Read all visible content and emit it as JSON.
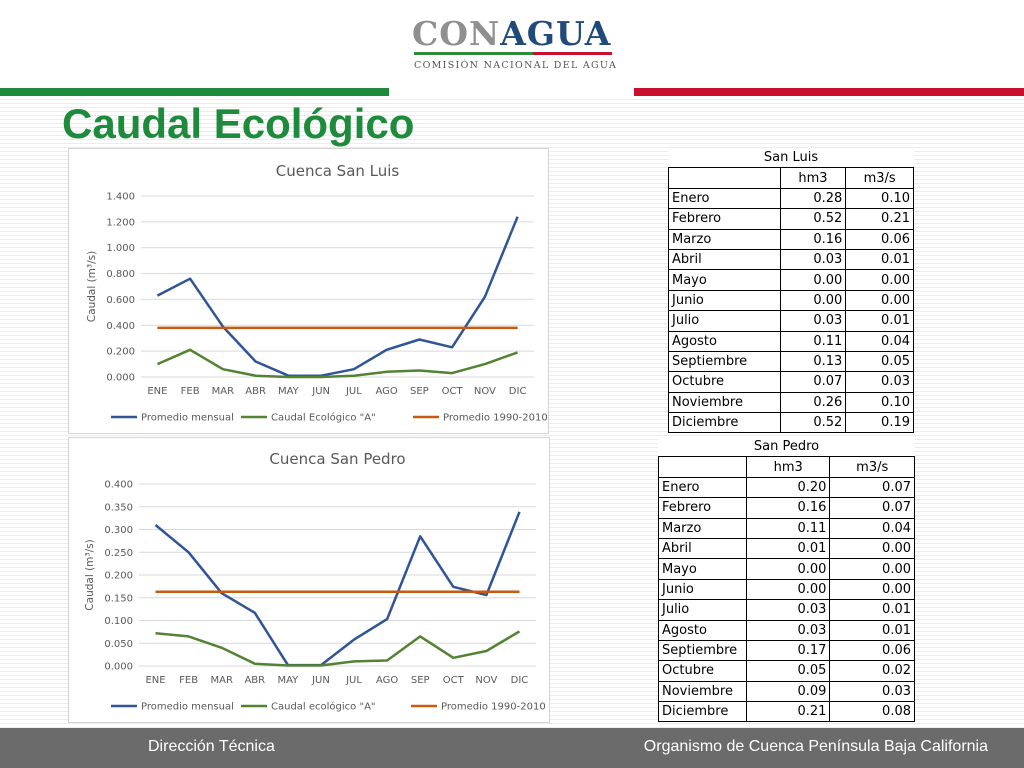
{
  "logo": {
    "text_a": "CON",
    "text_b": "AGUA",
    "subtitle": "COMISIÓN NACIONAL DEL AGUA"
  },
  "title": "Caudal Ecológico",
  "footer": {
    "left": "Dirección  Técnica",
    "right": "Organismo de Cuenca Península Baja California"
  },
  "chart_data": [
    {
      "type": "line",
      "title": "Cuenca San Luis",
      "ylabel": "Caudal (m³/s)",
      "xlabel": "",
      "categories": [
        "ENE",
        "FEB",
        "MAR",
        "ABR",
        "MAY",
        "JUN",
        "JUL",
        "AGO",
        "SEP",
        "OCT",
        "NOV",
        "DIC"
      ],
      "ylim": [
        0,
        1.4
      ],
      "yticks": [
        0,
        0.2,
        0.4,
        0.6,
        0.8,
        1.0,
        1.2,
        1.4
      ],
      "ytick_labels": [
        "0.000",
        "0.200",
        "0.400",
        "0.600",
        "0.800",
        "1.000",
        "1.200",
        "1.400"
      ],
      "grid": true,
      "legend": "bottom",
      "series": [
        {
          "name": "Promedio mensual",
          "color": "#2f5597",
          "values": [
            0.63,
            0.76,
            0.39,
            0.12,
            0.01,
            0.01,
            0.06,
            0.21,
            0.29,
            0.23,
            0.62,
            1.24
          ]
        },
        {
          "name": "Caudal Ecológico \"A\"",
          "color": "#548235",
          "values": [
            0.1,
            0.21,
            0.06,
            0.01,
            0.0,
            0.0,
            0.01,
            0.04,
            0.05,
            0.03,
            0.1,
            0.19
          ]
        },
        {
          "name": "Promedio 1990-2010",
          "color": "#c55a11",
          "values": [
            0.38,
            0.38,
            0.38,
            0.38,
            0.38,
            0.38,
            0.38,
            0.38,
            0.38,
            0.38,
            0.38,
            0.38
          ]
        }
      ]
    },
    {
      "type": "line",
      "title": "Cuenca San Pedro",
      "ylabel": "Caudal (m³/s)",
      "xlabel": "",
      "categories": [
        "ENE",
        "FEB",
        "MAR",
        "ABR",
        "MAY",
        "JUN",
        "JUL",
        "AGO",
        "SEP",
        "OCT",
        "NOV",
        "DIC"
      ],
      "ylim": [
        0,
        0.4
      ],
      "yticks": [
        0,
        0.05,
        0.1,
        0.15,
        0.2,
        0.25,
        0.3,
        0.35,
        0.4
      ],
      "ytick_labels": [
        "0.000",
        "0.050",
        "0.100",
        "0.150",
        "0.200",
        "0.250",
        "0.300",
        "0.350",
        "0.400"
      ],
      "grid": true,
      "legend": "bottom",
      "series": [
        {
          "name": "Promedio mensual",
          "color": "#2f5597",
          "values": [
            0.31,
            0.25,
            0.16,
            0.117,
            0.002,
            0.002,
            0.058,
            0.103,
            0.285,
            0.174,
            0.156,
            0.339
          ]
        },
        {
          "name": "Caudal ecológico \"A\"",
          "color": "#548235",
          "values": [
            0.072,
            0.065,
            0.04,
            0.005,
            0.001,
            0.001,
            0.01,
            0.012,
            0.065,
            0.018,
            0.033,
            0.076
          ]
        },
        {
          "name": "Promedio 1990-2010",
          "color": "#c55a11",
          "values": [
            0.163,
            0.163,
            0.163,
            0.163,
            0.163,
            0.163,
            0.163,
            0.163,
            0.163,
            0.163,
            0.163,
            0.163
          ]
        }
      ]
    }
  ],
  "tables": [
    {
      "title": "San Luis",
      "headers": [
        "",
        "hm3",
        "m3/s"
      ],
      "rows": [
        [
          "Enero",
          "0.28",
          "0.10"
        ],
        [
          "Febrero",
          "0.52",
          "0.21"
        ],
        [
          "Marzo",
          "0.16",
          "0.06"
        ],
        [
          "Abril",
          "0.03",
          "0.01"
        ],
        [
          "Mayo",
          "0.00",
          "0.00"
        ],
        [
          "Junio",
          "0.00",
          "0.00"
        ],
        [
          "Julio",
          "0.03",
          "0.01"
        ],
        [
          "Agosto",
          "0.11",
          "0.04"
        ],
        [
          "Septiembre",
          "0.13",
          "0.05"
        ],
        [
          "Octubre",
          "0.07",
          "0.03"
        ],
        [
          "Noviembre",
          "0.26",
          "0.10"
        ],
        [
          "Diciembre",
          "0.52",
          "0.19"
        ]
      ]
    },
    {
      "title": "San Pedro",
      "headers": [
        "",
        "hm3",
        "m3/s"
      ],
      "rows": [
        [
          "Enero",
          "0.20",
          "0.07"
        ],
        [
          "Febrero",
          "0.16",
          "0.07"
        ],
        [
          "Marzo",
          "0.11",
          "0.04"
        ],
        [
          "Abril",
          "0.01",
          "0.00"
        ],
        [
          "Mayo",
          "0.00",
          "0.00"
        ],
        [
          "Junio",
          "0.00",
          "0.00"
        ],
        [
          "Julio",
          "0.03",
          "0.01"
        ],
        [
          "Agosto",
          "0.03",
          "0.01"
        ],
        [
          "Septiembre",
          "0.17",
          "0.06"
        ],
        [
          "Octubre",
          "0.05",
          "0.02"
        ],
        [
          "Noviembre",
          "0.09",
          "0.03"
        ],
        [
          "Diciembre",
          "0.21",
          "0.08"
        ]
      ]
    }
  ]
}
